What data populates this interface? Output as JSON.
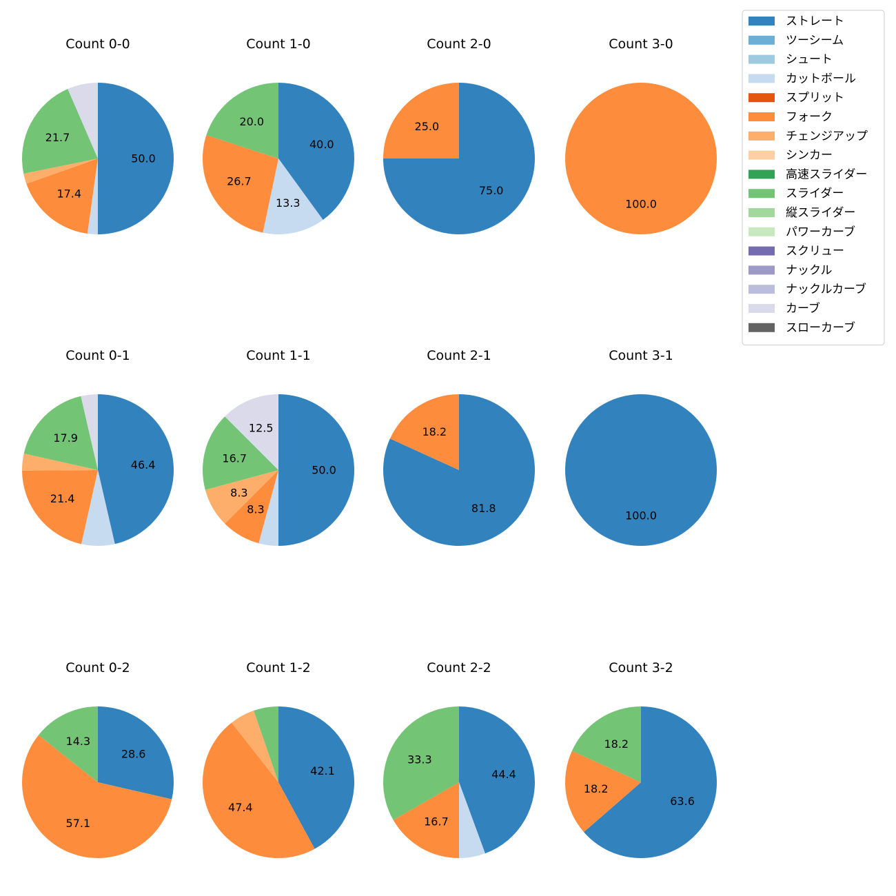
{
  "chart_data": {
    "type": "pie",
    "label_format": "percent_one_decimal",
    "legend": {
      "placement": "upper-right",
      "entries": [
        {
          "name": "ストレート",
          "color": "#3182bd"
        },
        {
          "name": "ツーシーム",
          "color": "#6baed6"
        },
        {
          "name": "シュート",
          "color": "#9ecae1"
        },
        {
          "name": "カットボール",
          "color": "#c6dbef"
        },
        {
          "name": "スプリット",
          "color": "#e6550d"
        },
        {
          "name": "フォーク",
          "color": "#fd8d3c"
        },
        {
          "name": "チェンジアップ",
          "color": "#fdae6b"
        },
        {
          "name": "シンカー",
          "color": "#fdd0a2"
        },
        {
          "name": "高速スライダー",
          "color": "#31a354"
        },
        {
          "name": "スライダー",
          "color": "#74c476"
        },
        {
          "name": "縦スライダー",
          "color": "#a1d99b"
        },
        {
          "name": "パワーカーブ",
          "color": "#c7e9c0"
        },
        {
          "name": "スクリュー",
          "color": "#756bb1"
        },
        {
          "name": "ナックル",
          "color": "#9e9ac8"
        },
        {
          "name": "ナックルカーブ",
          "color": "#bcbddc"
        },
        {
          "name": "カーブ",
          "color": "#dadaeb"
        },
        {
          "name": "スローカーブ",
          "color": "#636363"
        }
      ]
    },
    "pies": [
      {
        "title": "Count 0-0",
        "slices": [
          {
            "pitch": "ストレート",
            "value": 50.0
          },
          {
            "pitch": "カットボール",
            "value": 2.2
          },
          {
            "pitch": "フォーク",
            "value": 17.4
          },
          {
            "pitch": "チェンジアップ",
            "value": 2.2
          },
          {
            "pitch": "スライダー",
            "value": 21.7
          },
          {
            "pitch": "カーブ",
            "value": 6.5
          }
        ]
      },
      {
        "title": "Count 1-0",
        "slices": [
          {
            "pitch": "ストレート",
            "value": 40.0
          },
          {
            "pitch": "カットボール",
            "value": 13.3
          },
          {
            "pitch": "フォーク",
            "value": 26.7
          },
          {
            "pitch": "スライダー",
            "value": 20.0
          }
        ]
      },
      {
        "title": "Count 2-0",
        "slices": [
          {
            "pitch": "ストレート",
            "value": 75.0
          },
          {
            "pitch": "フォーク",
            "value": 25.0
          }
        ]
      },
      {
        "title": "Count 3-0",
        "slices": [
          {
            "pitch": "フォーク",
            "value": 100.0
          }
        ]
      },
      {
        "title": "Count 0-1",
        "slices": [
          {
            "pitch": "ストレート",
            "value": 46.4
          },
          {
            "pitch": "カットボール",
            "value": 7.1
          },
          {
            "pitch": "フォーク",
            "value": 21.4
          },
          {
            "pitch": "チェンジアップ",
            "value": 3.6
          },
          {
            "pitch": "スライダー",
            "value": 17.9
          },
          {
            "pitch": "カーブ",
            "value": 3.6
          }
        ]
      },
      {
        "title": "Count 1-1",
        "slices": [
          {
            "pitch": "ストレート",
            "value": 50.0
          },
          {
            "pitch": "カットボール",
            "value": 4.2
          },
          {
            "pitch": "フォーク",
            "value": 8.3
          },
          {
            "pitch": "チェンジアップ",
            "value": 8.3
          },
          {
            "pitch": "スライダー",
            "value": 16.7
          },
          {
            "pitch": "カーブ",
            "value": 12.5
          }
        ]
      },
      {
        "title": "Count 2-1",
        "slices": [
          {
            "pitch": "ストレート",
            "value": 81.8
          },
          {
            "pitch": "フォーク",
            "value": 18.2
          }
        ]
      },
      {
        "title": "Count 3-1",
        "slices": [
          {
            "pitch": "ストレート",
            "value": 100.0
          }
        ]
      },
      {
        "title": "Count 0-2",
        "slices": [
          {
            "pitch": "ストレート",
            "value": 28.6
          },
          {
            "pitch": "フォーク",
            "value": 57.1
          },
          {
            "pitch": "スライダー",
            "value": 14.3
          }
        ]
      },
      {
        "title": "Count 1-2",
        "slices": [
          {
            "pitch": "ストレート",
            "value": 42.1
          },
          {
            "pitch": "フォーク",
            "value": 47.4
          },
          {
            "pitch": "チェンジアップ",
            "value": 5.3
          },
          {
            "pitch": "スライダー",
            "value": 5.3
          }
        ]
      },
      {
        "title": "Count 2-2",
        "slices": [
          {
            "pitch": "ストレート",
            "value": 44.4
          },
          {
            "pitch": "カットボール",
            "value": 5.6
          },
          {
            "pitch": "フォーク",
            "value": 16.7
          },
          {
            "pitch": "スライダー",
            "value": 33.3
          }
        ]
      },
      {
        "title": "Count 3-2",
        "slices": [
          {
            "pitch": "ストレート",
            "value": 63.6
          },
          {
            "pitch": "フォーク",
            "value": 18.2
          },
          {
            "pitch": "スライダー",
            "value": 18.2
          }
        ]
      }
    ]
  }
}
